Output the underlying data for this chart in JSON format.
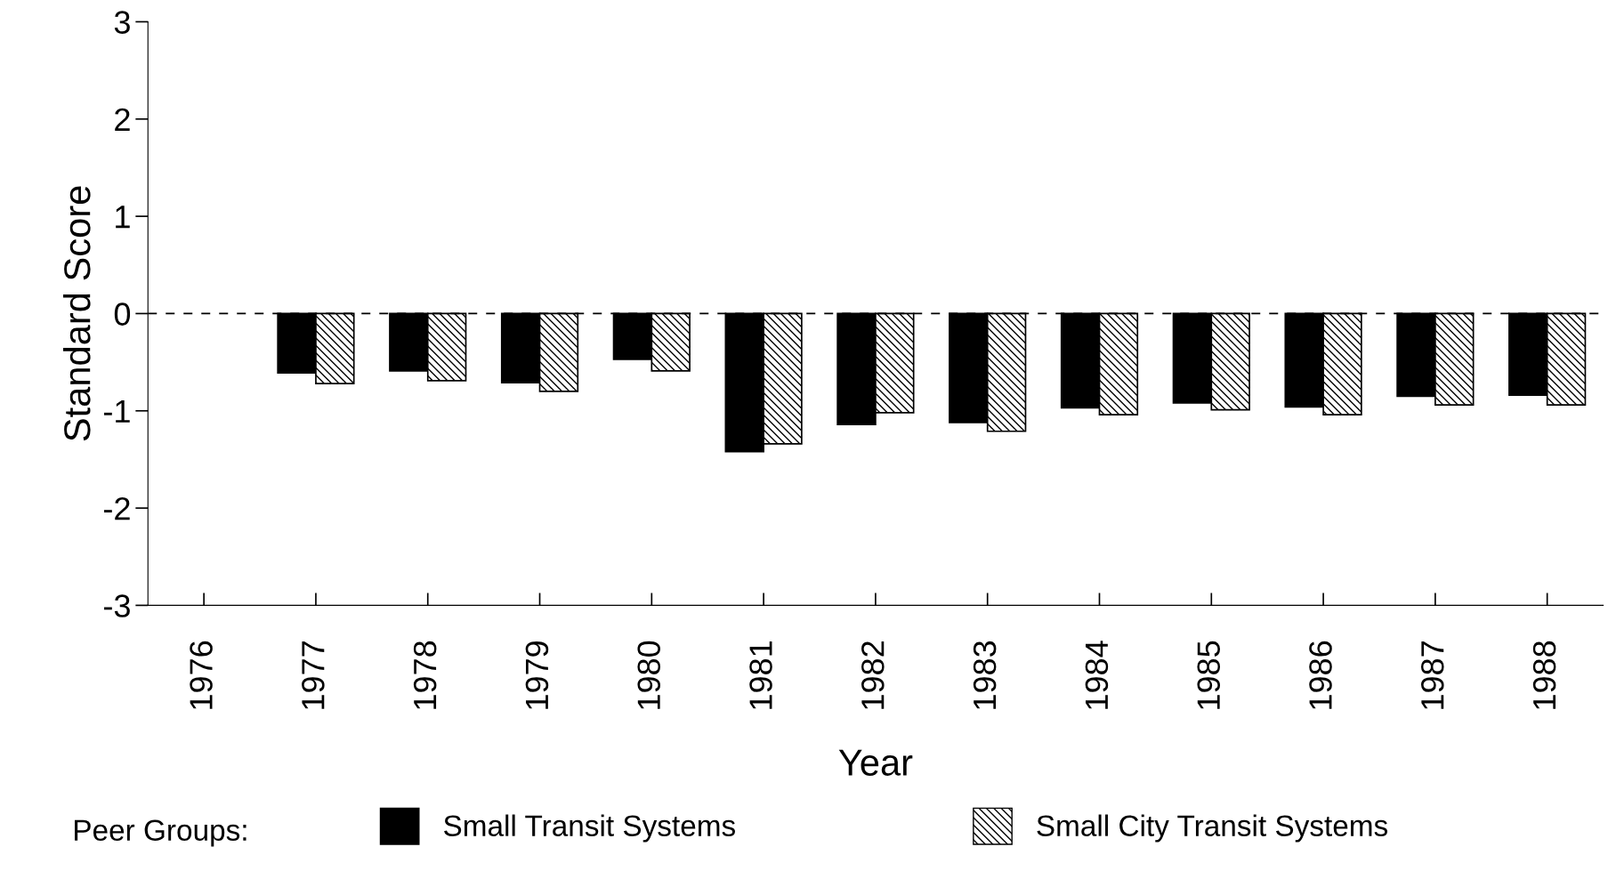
{
  "chart_data": {
    "type": "bar",
    "xlabel": "Year",
    "ylabel": "Standard Score",
    "legend_title": "Peer Groups:",
    "legend": "bottom",
    "categories": [
      "1976",
      "1977",
      "1978",
      "1979",
      "1980",
      "1981",
      "1982",
      "1983",
      "1984",
      "1985",
      "1986",
      "1987",
      "1988"
    ],
    "series": [
      {
        "name": "Small Transit Systems",
        "color": "#000000",
        "values": [
          null,
          -0.61,
          -0.59,
          -0.71,
          -0.47,
          -1.42,
          -1.14,
          -1.12,
          -0.97,
          -0.92,
          -0.96,
          -0.85,
          -0.84
        ]
      },
      {
        "name": "Small City Transit Systems",
        "color": "#000000",
        "values": [
          null,
          -0.72,
          -0.69,
          -0.8,
          -0.59,
          -1.34,
          -1.02,
          -1.21,
          -1.04,
          -0.99,
          -1.04,
          -0.94,
          -0.94
        ]
      }
    ],
    "ylim": [
      -3,
      3
    ],
    "yticks": [
      -3,
      -2,
      -1,
      0,
      1,
      2,
      3
    ],
    "ref_lines": [
      {
        "axis": "y",
        "value": 0,
        "color": "#000000",
        "line_style": "dashed"
      }
    ],
    "grid": false
  }
}
